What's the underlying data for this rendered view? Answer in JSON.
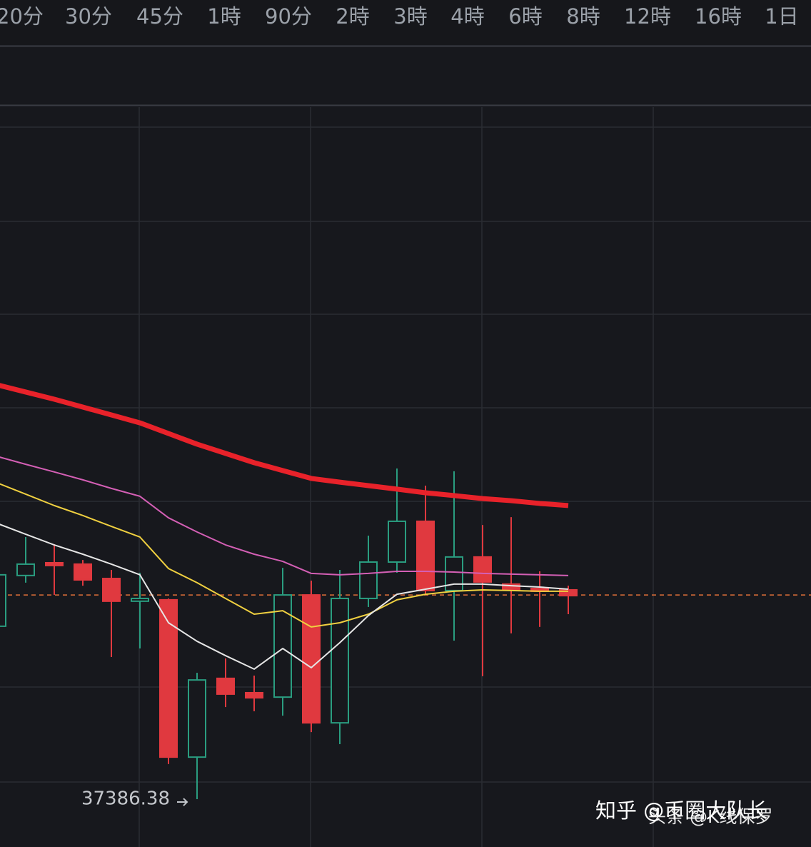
{
  "tabs": [
    "20分",
    "30分",
    "45分",
    "1時",
    "90分",
    "2時",
    "3時",
    "4時",
    "6時",
    "8時",
    "12時",
    "16時",
    "1日"
  ],
  "selected_tab": 7,
  "chart_data": {
    "type": "candlestick",
    "categories": [
      null,
      null,
      null,
      null,
      null,
      null,
      null,
      null,
      null,
      null,
      null,
      null,
      null,
      null,
      null,
      null,
      null,
      null,
      null,
      null,
      null
    ],
    "open": [
      38133,
      38352,
      38407,
      38401,
      38339,
      38241,
      38247,
      37568,
      37908,
      37846,
      37827,
      38268,
      37716,
      38253,
      38410,
      38586,
      38287,
      38432,
      38315,
      38296,
      38290
    ],
    "high": [
      38370,
      38518,
      38487,
      38419,
      38376,
      38364,
      38253,
      37932,
      37994,
      37920,
      38385,
      38330,
      38376,
      38524,
      38814,
      38740,
      38802,
      38570,
      38604,
      38370,
      38308
    ],
    "low": [
      38123,
      38321,
      38268,
      38308,
      38000,
      38037,
      37538,
      37386.38,
      37784,
      37766,
      37747,
      37676,
      37624,
      38216,
      38364,
      38268,
      38071,
      37917,
      38102,
      38130,
      38185
    ],
    "close": [
      38355,
      38401,
      38395,
      38333,
      38241,
      38253,
      37568,
      37901,
      37840,
      37824,
      38268,
      37716,
      38253,
      38410,
      38586,
      38287,
      38432,
      38324,
      38290,
      38284,
      38265
    ],
    "up_color": "#2a9d80",
    "down_color": "#e0393f",
    "low_label_index": 7,
    "price_line": 38268,
    "price_line_color": "#e2703a",
    "series": [
      {
        "color": "#e8222a",
        "values": [
          39175,
          39144,
          39113,
          39079,
          39045,
          39011,
          38965,
          38919,
          38879,
          38839,
          38805,
          38771,
          38755,
          38740,
          38725,
          38709,
          38697,
          38684,
          38675,
          38663,
          38654
        ]
      },
      {
        "color": "#d45fb5",
        "values": [
          38866,
          38832,
          38799,
          38765,
          38728,
          38694,
          38601,
          38540,
          38484,
          38444,
          38413,
          38361,
          38355,
          38361,
          38370,
          38370,
          38367,
          38361,
          38358,
          38355,
          38352
        ]
      },
      {
        "color": "#f0d040",
        "values": [
          38752,
          38703,
          38654,
          38611,
          38564,
          38518,
          38382,
          38321,
          38253,
          38185,
          38200,
          38130,
          38148,
          38185,
          38247,
          38271,
          38284,
          38290,
          38287,
          38284,
          38284
        ]
      },
      {
        "color": "#e6e6e6",
        "values": [
          38577,
          38530,
          38484,
          38444,
          38401,
          38355,
          38148,
          38068,
          38006,
          37948,
          38037,
          37954,
          38062,
          38179,
          38271,
          38293,
          38315,
          38315,
          38308,
          38302,
          38293
        ]
      }
    ],
    "ylim": [
      37180,
      40380
    ]
  },
  "watermarks": [
    "知乎 @币圈大队长",
    "头条 @K线保罗"
  ]
}
